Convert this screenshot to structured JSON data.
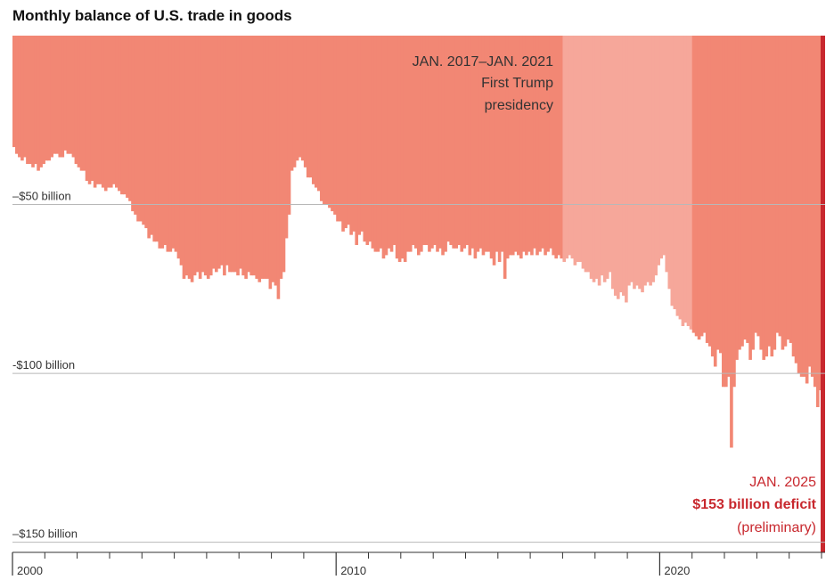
{
  "title": "Monthly balance of U.S. trade in goods",
  "chart_data": {
    "type": "bar",
    "title": "Monthly balance of U.S. trade in goods",
    "xlabel": "",
    "ylabel": "",
    "x_range": [
      "2000-01",
      "2025-01"
    ],
    "ylim": [
      -153,
      0
    ],
    "y_ticks": [
      -50,
      -100,
      -150
    ],
    "y_tick_labels": [
      "–$50 billion",
      "-$100 billion",
      "–$150 billion"
    ],
    "x_tick_labels": [
      "2000",
      "2010",
      "2020"
    ],
    "grid": true,
    "colors": {
      "bar": "#f28774",
      "bar_highlight": "#f6a79a",
      "latest": "#c8282e",
      "grid": "#b8b8b8",
      "highlight_text": "#c8282e"
    },
    "highlight_period": {
      "start": "2017-01",
      "end": "2021-01",
      "label_lines": [
        "JAN. 2017–JAN. 2021",
        "First Trump",
        "presidency"
      ]
    },
    "latest": {
      "date": "2025-01",
      "value": -153,
      "label_lines": [
        "JAN. 2025",
        "$153 billion deficit",
        "(preliminary)"
      ]
    },
    "monthly_series_by_year": [
      {
        "year": 2000,
        "values": [
          -33,
          -35,
          -36,
          -37,
          -36,
          -38,
          -38,
          -39,
          -38,
          -40,
          -39,
          -38
        ]
      },
      {
        "year": 2001,
        "values": [
          -37,
          -37,
          -36,
          -35,
          -35,
          -36,
          -36,
          -34,
          -35,
          -35,
          -36,
          -38
        ]
      },
      {
        "year": 2002,
        "values": [
          -39,
          -40,
          -40,
          -43,
          -44,
          -43,
          -45,
          -44,
          -44,
          -45,
          -46,
          -45
        ]
      },
      {
        "year": 2003,
        "values": [
          -45,
          -44,
          -45,
          -46,
          -47,
          -47,
          -48,
          -49,
          -52,
          -53,
          -55,
          -55
        ]
      },
      {
        "year": 2004,
        "values": [
          -56,
          -57,
          -60,
          -59,
          -61,
          -61,
          -63,
          -63,
          -62,
          -64,
          -64,
          -63
        ]
      },
      {
        "year": 2005,
        "values": [
          -64,
          -66,
          -68,
          -72,
          -71,
          -72,
          -73,
          -71,
          -70,
          -72,
          -70,
          -71
        ]
      },
      {
        "year": 2006,
        "values": [
          -72,
          -71,
          -69,
          -70,
          -69,
          -68,
          -71,
          -68,
          -70,
          -70,
          -70,
          -71
        ]
      },
      {
        "year": 2007,
        "values": [
          -69,
          -71,
          -72,
          -70,
          -71,
          -71,
          -72,
          -73,
          -72,
          -72,
          -72,
          -75
        ]
      },
      {
        "year": 2008,
        "values": [
          -73,
          -74,
          -78,
          -72,
          -70,
          -60,
          -53,
          -40,
          -39,
          -37,
          -36,
          -37
        ]
      },
      {
        "year": 2009,
        "values": [
          -39,
          -42,
          -42,
          -44,
          -45,
          -46,
          -49,
          -50,
          -50,
          -51,
          -52,
          -53
        ]
      },
      {
        "year": 2010,
        "values": [
          -55,
          -55,
          -58,
          -57,
          -56,
          -59,
          -58,
          -62,
          -59,
          -58,
          -61,
          -62
        ]
      },
      {
        "year": 2011,
        "values": [
          -61,
          -63,
          -64,
          -64,
          -63,
          -66,
          -65,
          -63,
          -64,
          -62,
          -66,
          -67
        ]
      },
      {
        "year": 2012,
        "values": [
          -66,
          -67,
          -64,
          -64,
          -62,
          -63,
          -65,
          -64,
          -62,
          -62,
          -64,
          -63
        ]
      },
      {
        "year": 2013,
        "values": [
          -62,
          -64,
          -63,
          -65,
          -64,
          -61,
          -62,
          -63,
          -63,
          -62,
          -64,
          -63
        ]
      },
      {
        "year": 2014,
        "values": [
          -62,
          -65,
          -63,
          -66,
          -64,
          -63,
          -65,
          -64,
          -64,
          -66,
          -68,
          -64
        ]
      },
      {
        "year": 2015,
        "values": [
          -67,
          -64,
          -72,
          -66,
          -65,
          -65,
          -64,
          -65,
          -66,
          -64,
          -65,
          -64
        ]
      },
      {
        "year": 2016,
        "values": [
          -65,
          -63,
          -65,
          -64,
          -63,
          -65,
          -64,
          -63,
          -65,
          -66,
          -65,
          -66
        ]
      },
      {
        "year": 2017,
        "values": [
          -67,
          -66,
          -65,
          -66,
          -68,
          -67,
          -67,
          -69,
          -70,
          -70,
          -72,
          -73
        ]
      },
      {
        "year": 2018,
        "values": [
          -72,
          -74,
          -71,
          -73,
          -72,
          -70,
          -75,
          -77,
          -78,
          -76,
          -77,
          -79
        ]
      },
      {
        "year": 2019,
        "values": [
          -74,
          -73,
          -75,
          -74,
          -75,
          -76,
          -74,
          -73,
          -74,
          -73,
          -71,
          -68
        ]
      },
      {
        "year": 2020,
        "values": [
          -66,
          -65,
          -70,
          -75,
          -80,
          -81,
          -83,
          -84,
          -86,
          -85,
          -86,
          -87
        ]
      },
      {
        "year": 2021,
        "values": [
          -88,
          -89,
          -90,
          -89,
          -88,
          -91,
          -92,
          -95,
          -98,
          -93,
          -94,
          -104
        ]
      },
      {
        "year": 2022,
        "values": [
          -104,
          -101,
          -122,
          -104,
          -96,
          -93,
          -92,
          -90,
          -91,
          -96,
          -93,
          -88
        ]
      },
      {
        "year": 2023,
        "values": [
          -89,
          -93,
          -96,
          -95,
          -92,
          -95,
          -93,
          -88,
          -89,
          -93,
          -92,
          -90
        ]
      },
      {
        "year": 2024,
        "values": [
          -91,
          -95,
          -97,
          -100,
          -101,
          -101,
          -103,
          -98,
          -101,
          -104,
          -110,
          -105
        ]
      },
      {
        "year": 2025,
        "values": [
          -153
        ]
      }
    ]
  }
}
